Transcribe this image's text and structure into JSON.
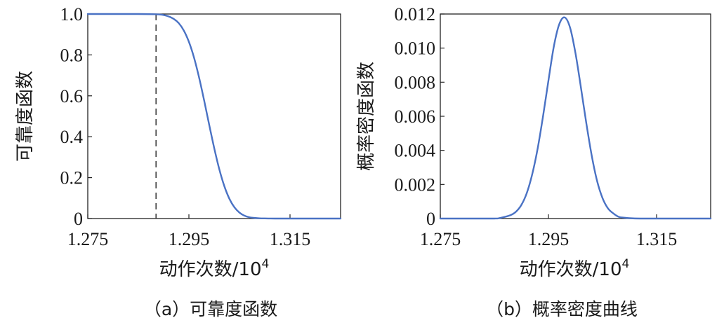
{
  "chart_data": [
    {
      "type": "line",
      "caption": "（a）可靠度函数",
      "xlabel": "动作次数/10",
      "xlabel_sup": "4",
      "ylabel": "可靠度函数",
      "xlim": [
        1.275,
        1.325
      ],
      "ylim": [
        0,
        1.0
      ],
      "x_ticks": [
        1.275,
        1.295,
        1.315
      ],
      "x_tick_labels": [
        "1.275",
        "1.295",
        "1.315"
      ],
      "y_ticks": [
        0,
        0.2,
        0.4,
        0.6,
        0.8,
        1.0
      ],
      "y_tick_labels": [
        "0",
        "0.2",
        "0.4",
        "0.6",
        "0.8",
        "1.0"
      ],
      "grid": false,
      "reference_line": {
        "x": 1.2885,
        "style": "dashed"
      },
      "series": [
        {
          "color": "#4a72c4",
          "x": [
            1.275,
            1.28,
            1.285,
            1.288,
            1.289,
            1.29,
            1.291,
            1.292,
            1.293,
            1.294,
            1.295,
            1.296,
            1.297,
            1.298,
            1.299,
            1.3,
            1.301,
            1.302,
            1.303,
            1.304,
            1.305,
            1.306,
            1.307,
            1.308,
            1.309,
            1.31,
            1.311,
            1.312,
            1.315,
            1.32,
            1.325
          ],
          "values": [
            1.0,
            1.0,
            1.0,
            0.999,
            0.998,
            0.995,
            0.988,
            0.976,
            0.955,
            0.919,
            0.864,
            0.788,
            0.691,
            0.579,
            0.46,
            0.345,
            0.242,
            0.159,
            0.097,
            0.055,
            0.029,
            0.014,
            0.006,
            0.003,
            0.001,
            0.0005,
            0.0002,
            0.0,
            0.0,
            0.0,
            0.0
          ]
        }
      ]
    },
    {
      "type": "line",
      "caption": "（b）概率密度曲线",
      "xlabel": "动作次数/10",
      "xlabel_sup": "4",
      "ylabel": "概率密度函数",
      "xlim": [
        1.275,
        1.325
      ],
      "ylim": [
        0,
        0.012
      ],
      "x_ticks": [
        1.275,
        1.295,
        1.315
      ],
      "x_tick_labels": [
        "1.275",
        "1.295",
        "1.315"
      ],
      "y_ticks": [
        0,
        0.002,
        0.004,
        0.006,
        0.008,
        0.01,
        0.012
      ],
      "y_tick_labels": [
        "0",
        "0.002",
        "0.004",
        "0.006",
        "0.008",
        "0.010",
        "0.012"
      ],
      "grid": false,
      "series": [
        {
          "color": "#4a72c4",
          "x": [
            1.275,
            1.28,
            1.285,
            1.286,
            1.288,
            1.289,
            1.29,
            1.291,
            1.292,
            1.293,
            1.294,
            1.295,
            1.296,
            1.297,
            1.298,
            1.299,
            1.3,
            1.301,
            1.302,
            1.303,
            1.304,
            1.305,
            1.306,
            1.307,
            1.308,
            1.309,
            1.31,
            1.312,
            1.315,
            1.32,
            1.325
          ],
          "values": [
            0.0,
            0.0,
            0.0,
            3e-05,
            0.0002,
            0.0004,
            0.0008,
            0.0015,
            0.0026,
            0.0041,
            0.006,
            0.0081,
            0.0101,
            0.0114,
            0.0118,
            0.0112,
            0.0097,
            0.0077,
            0.0056,
            0.0037,
            0.0022,
            0.0012,
            0.0006,
            0.0003,
            0.0001,
            5e-05,
            2e-05,
            0.0,
            0.0,
            0.0,
            0.0
          ]
        }
      ]
    }
  ]
}
